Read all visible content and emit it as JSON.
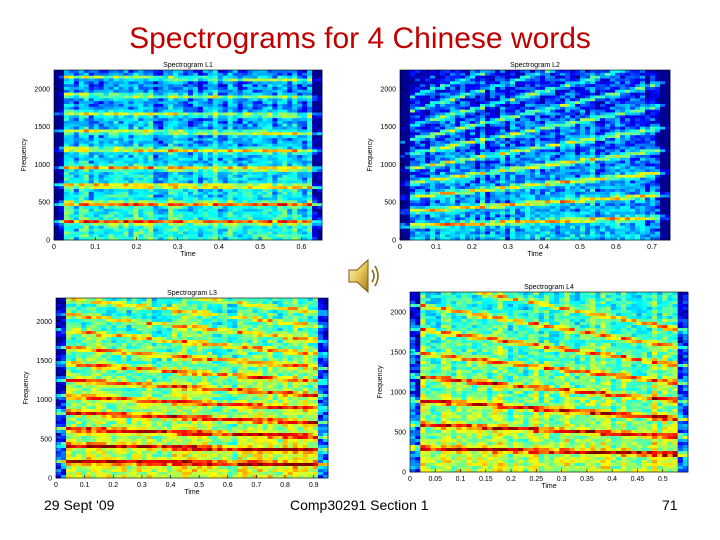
{
  "slide": {
    "title": "Spectrograms for 4 Chinese words",
    "footer_left": "29 Sept '09",
    "footer_center": "Comp30291 Section 1",
    "footer_right": "71",
    "icon": "speaker-icon"
  },
  "colors": {
    "title": "#c00000",
    "colormap": [
      "#00008f",
      "#0000ff",
      "#00a0ff",
      "#00ffff",
      "#7fff7f",
      "#ffff00",
      "#ff8000",
      "#ff0000",
      "#800000"
    ]
  },
  "chart_data": [
    {
      "type": "heatmap",
      "title": "Spectrogram L1",
      "xlabel": "Time",
      "ylabel": "Frequency",
      "xlim": [
        0,
        0.65
      ],
      "ylim": [
        0,
        2250
      ],
      "xticks": [
        0,
        0.1,
        0.2,
        0.3,
        0.4,
        0.5,
        0.6
      ],
      "yticks": [
        0,
        500,
        1000,
        1500,
        2000
      ],
      "harmonics": {
        "f0_start": 240,
        "f0_end": 235,
        "count": 9
      },
      "intensity": "medium"
    },
    {
      "type": "heatmap",
      "title": "Spectrogram L2",
      "xlabel": "Time",
      "ylabel": "Frequency",
      "xlim": [
        0,
        0.75
      ],
      "ylim": [
        0,
        2250
      ],
      "xticks": [
        0,
        0.1,
        0.2,
        0.3,
        0.4,
        0.5,
        0.6,
        0.7
      ],
      "yticks": [
        0,
        500,
        1000,
        1500,
        2000
      ],
      "harmonics": {
        "f0_start": 185,
        "f0_end": 300,
        "count": 10
      },
      "intensity": "low"
    },
    {
      "type": "heatmap",
      "title": "Spectrogram L3",
      "xlabel": "Time",
      "ylabel": "Frequency",
      "xlim": [
        0,
        0.95
      ],
      "ylim": [
        0,
        2300
      ],
      "xticks": [
        0,
        0.1,
        0.2,
        0.3,
        0.4,
        0.5,
        0.6,
        0.7,
        0.8,
        0.9
      ],
      "yticks": [
        0,
        500,
        1000,
        1500,
        2000
      ],
      "harmonics": {
        "f0_start": 210,
        "f0_end": 175,
        "count": 12
      },
      "intensity": "high"
    },
    {
      "type": "heatmap",
      "title": "Spectrogram L4",
      "xlabel": "Time",
      "ylabel": "Frequency",
      "xlim": [
        0,
        0.55
      ],
      "ylim": [
        0,
        2250
      ],
      "xticks": [
        0,
        0.05,
        0.1,
        0.15,
        0.2,
        0.25,
        0.3,
        0.35,
        0.4,
        0.45,
        0.5
      ],
      "yticks": [
        0,
        500,
        1000,
        1500,
        2000
      ],
      "harmonics": {
        "f0_start": 300,
        "f0_end": 220,
        "count": 8
      },
      "intensity": "high"
    }
  ]
}
